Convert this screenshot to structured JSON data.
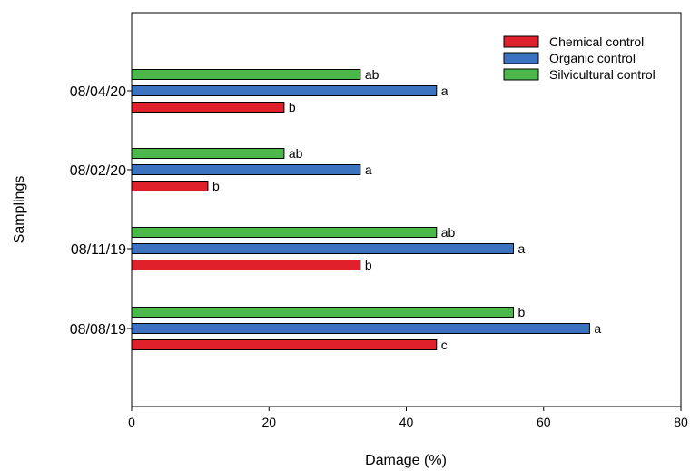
{
  "chart_data": {
    "type": "bar",
    "orientation": "horizontal",
    "title": "",
    "xlabel": "Damage (%)",
    "ylabel": "Samplings",
    "xlim": [
      0,
      80
    ],
    "xticks": [
      0,
      20,
      40,
      60,
      80
    ],
    "grid": false,
    "legend_position": "top-right",
    "categories": [
      "08/04/20",
      "08/02/20",
      "08/11/19",
      "08/08/19"
    ],
    "series": [
      {
        "name": "Chemical control",
        "color": "#e0202a",
        "values": [
          22.2,
          11.1,
          33.3,
          44.4
        ],
        "labels": [
          "b",
          "b",
          "b",
          "c"
        ]
      },
      {
        "name": "Organic control",
        "color": "#3b73c0",
        "values": [
          44.4,
          33.3,
          55.6,
          66.7
        ],
        "labels": [
          "a",
          "a",
          "a",
          "a"
        ]
      },
      {
        "name": "Silvicultural control",
        "color": "#4cb84c",
        "values": [
          33.3,
          22.2,
          44.4,
          55.6
        ],
        "labels": [
          "ab",
          "ab",
          "ab",
          "b"
        ]
      }
    ]
  }
}
